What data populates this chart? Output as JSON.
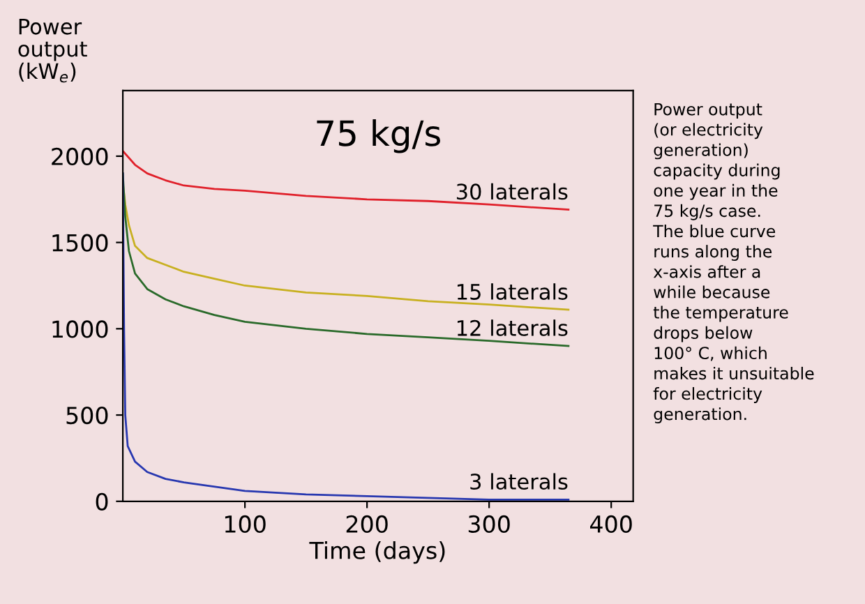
{
  "chart_data": {
    "type": "line",
    "title": "75 kg/s",
    "ylabel": "Power\noutput\n(kW$_{e}$)",
    "xlabel": "Time (days)",
    "xlim": [
      0,
      418
    ],
    "ylim": [
      0,
      2380
    ],
    "xticks": [
      100,
      200,
      300,
      400
    ],
    "yticks": [
      0,
      500,
      1000,
      1500,
      2000
    ],
    "grid": false,
    "legend": false,
    "marker": "none",
    "line_style": "solid",
    "series": [
      {
        "name": "30 laterals",
        "color": "#e0202a",
        "x": [
          0,
          10,
          20,
          35,
          50,
          75,
          100,
          150,
          200,
          250,
          300,
          365
        ],
        "values": [
          2030,
          1950,
          1900,
          1860,
          1830,
          1810,
          1800,
          1770,
          1750,
          1740,
          1720,
          1690
        ]
      },
      {
        "name": "15 laterals",
        "color": "#c8b020",
        "x": [
          0,
          2,
          5,
          10,
          20,
          35,
          50,
          75,
          100,
          150,
          200,
          250,
          300,
          365
        ],
        "values": [
          1850,
          1720,
          1600,
          1480,
          1410,
          1370,
          1330,
          1290,
          1250,
          1210,
          1190,
          1160,
          1140,
          1110
        ]
      },
      {
        "name": "12 laterals",
        "color": "#2a6a2a",
        "x": [
          0,
          2,
          5,
          10,
          20,
          35,
          50,
          75,
          100,
          150,
          200,
          250,
          300,
          365
        ],
        "values": [
          1900,
          1650,
          1450,
          1320,
          1230,
          1170,
          1130,
          1080,
          1040,
          1000,
          970,
          950,
          930,
          900
        ]
      },
      {
        "name": "3 laterals",
        "color": "#2838b0",
        "x": [
          0,
          1,
          2,
          4,
          10,
          20,
          35,
          50,
          100,
          150,
          200,
          250,
          300,
          365
        ],
        "values": [
          1900,
          1000,
          500,
          320,
          230,
          170,
          130,
          110,
          60,
          40,
          30,
          20,
          10,
          10
        ]
      }
    ],
    "annotations": [
      "Power output\n(or electricity\ngeneration)\ncapacity during\none year in the\n75 kg/s case.\nThe blue curve\nruns along the\nx-axis after a\nwhile because\nthe temperature\ndrops below\n100° C, which\nmakes it unsuitable\nfor electricity\ngeneration."
    ]
  }
}
